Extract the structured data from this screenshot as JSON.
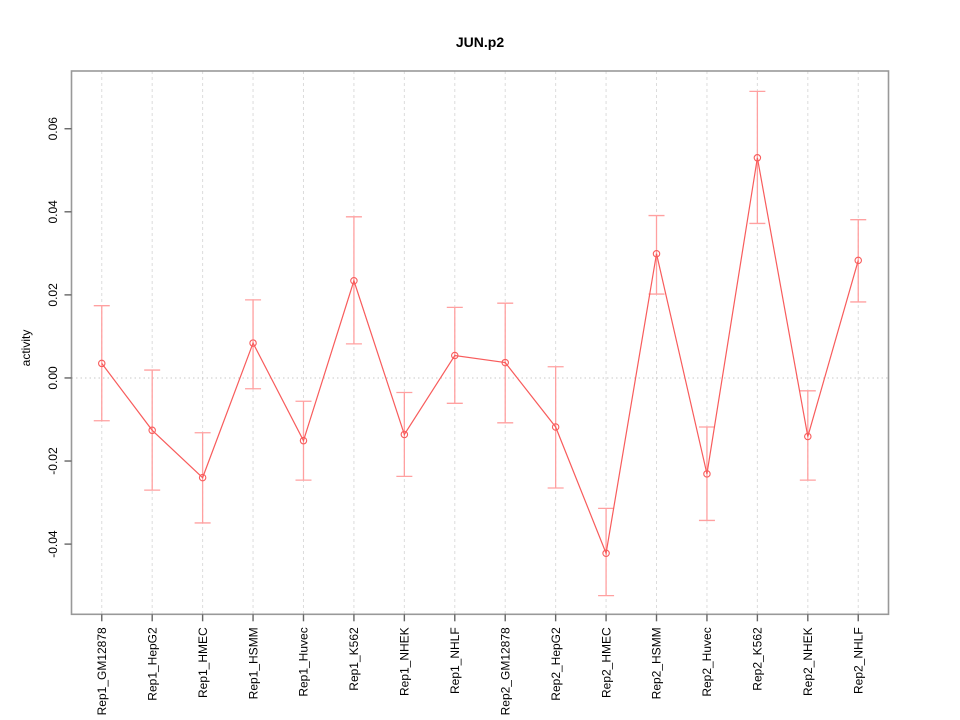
{
  "chart_data": {
    "type": "line",
    "title": "JUN.p2",
    "xlabel": "",
    "ylabel": "activity",
    "categories": [
      "Rep1_GM12878",
      "Rep1_HepG2",
      "Rep1_HMEC",
      "Rep1_HSMM",
      "Rep1_Huvec",
      "Rep1_K562",
      "Rep1_NHEK",
      "Rep1_NHLF",
      "Rep2_GM12878",
      "Rep2_HepG2",
      "Rep2_HMEC",
      "Rep2_HSMM",
      "Rep2_Huvec",
      "Rep2_K562",
      "Rep2_NHEK",
      "Rep2_NHLF"
    ],
    "series": [
      {
        "name": "activity",
        "values": [
          0.0035,
          -0.0126,
          -0.024,
          0.0084,
          -0.0151,
          0.0234,
          -0.0136,
          0.0054,
          0.0037,
          -0.0118,
          -0.0422,
          0.0299,
          -0.0231,
          0.053,
          -0.0141,
          0.0283
        ],
        "ci_low": [
          -0.0103,
          -0.027,
          -0.0349,
          -0.0026,
          -0.0246,
          0.0082,
          -0.0237,
          -0.0061,
          -0.0108,
          -0.0265,
          -0.0524,
          0.0202,
          -0.0343,
          0.0372,
          -0.0246,
          0.0183
        ],
        "ci_high": [
          0.0174,
          0.0019,
          -0.0132,
          0.0188,
          -0.0056,
          0.0388,
          -0.0035,
          0.017,
          0.018,
          0.0027,
          -0.0314,
          0.0391,
          -0.0118,
          0.069,
          -0.0031,
          0.0381
        ]
      }
    ],
    "xlim": [
      0.4,
      16.6
    ],
    "ylim": [
      -0.0569,
      0.0739
    ],
    "y_ticks": [
      {
        "value": -0.04,
        "label": "-0.04"
      },
      {
        "value": -0.02,
        "label": "-0.02"
      },
      {
        "value": 0,
        "label": "0.00"
      },
      {
        "value": 0.02,
        "label": "0.02"
      },
      {
        "value": 0.04,
        "label": "0.04"
      },
      {
        "value": 0.06,
        "label": "0.06"
      }
    ],
    "grid": {
      "vertical_gridlines": "dashed, one per category",
      "zero_line": "dotted horizontal at y=0",
      "legend": "none"
    },
    "colors": {
      "line": "#f85c5c",
      "point": "#f85c5c",
      "error_bar": "#ffa0a0",
      "grid": "#dcdcdc",
      "zero_line": "#c9c9c9",
      "box": "#999999",
      "tick": "#666666",
      "text": "#000000",
      "background": "#ffffff"
    }
  }
}
